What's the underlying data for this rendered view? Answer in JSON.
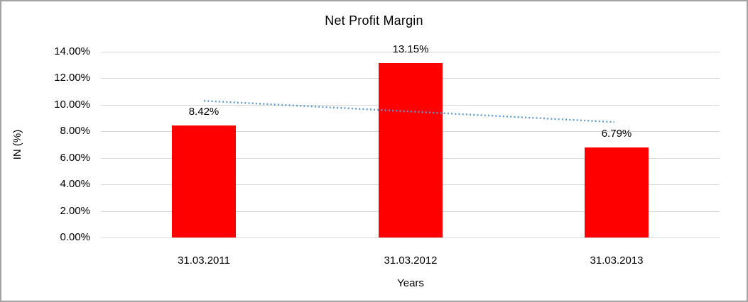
{
  "chart_data": {
    "type": "bar",
    "title": "Net Profit Margin",
    "xlabel": "Years",
    "ylabel": "IN (%)",
    "categories": [
      "31.03.2011",
      "31.03.2012",
      "31.03.2013"
    ],
    "values": [
      8.42,
      13.15,
      6.79
    ],
    "data_labels": [
      "8.42%",
      "13.15%",
      "6.79%"
    ],
    "y_ticks": [
      "0.00%",
      "2.00%",
      "4.00%",
      "6.00%",
      "8.00%",
      "10.00%",
      "12.00%",
      "14.00%"
    ],
    "y_tick_values": [
      0,
      2,
      4,
      6,
      8,
      10,
      12,
      14
    ],
    "ylim": [
      0,
      14
    ],
    "grid": true,
    "legend_position": "none",
    "bar_color": "#FF0000",
    "gridline_color": "#d9d9d9",
    "trendline": {
      "type": "linear",
      "style": "dotted",
      "color": "#5B9BD5",
      "start_value": 10.3,
      "end_value": 8.7
    }
  }
}
